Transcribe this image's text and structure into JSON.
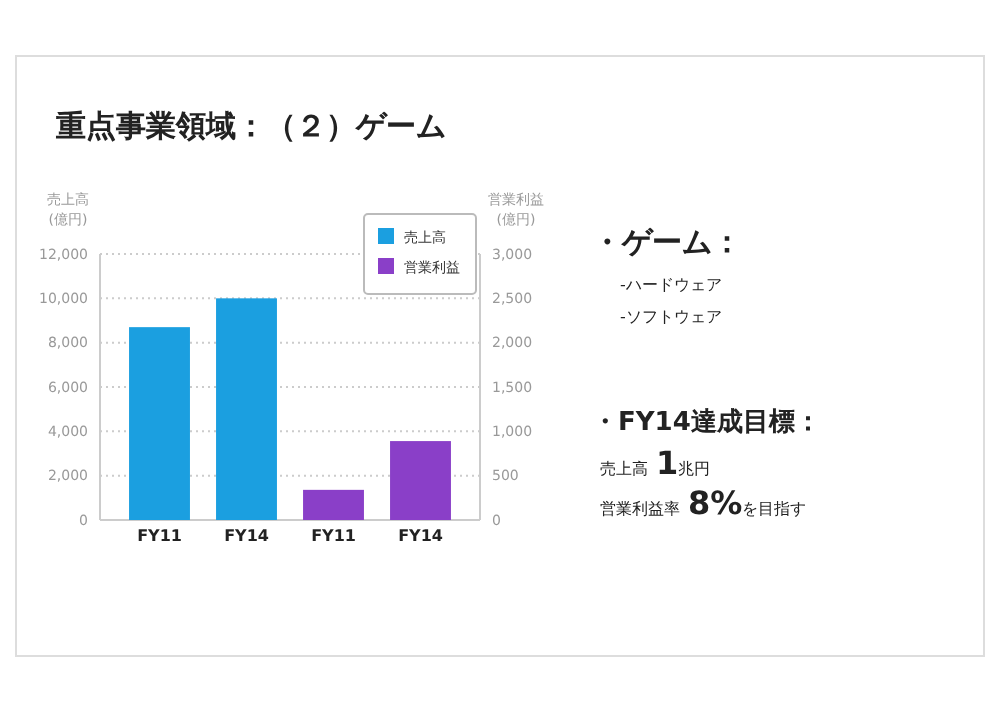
{
  "chart_data": {
    "type": "bar",
    "title": "重点事業領域：（２）ゲーム",
    "ylabel": "売上高\n(億円)",
    "y2label": "営業利益\n(億円)",
    "categories": [
      "FY11",
      "FY14",
      "FY11",
      "FY14"
    ],
    "series": [
      {
        "name": "売上高",
        "color": "#1b9fe0",
        "values": [
          8700,
          10000,
          null,
          null
        ]
      },
      {
        "name": "営業利益",
        "color": "#8a3fc8",
        "values": [
          null,
          null,
          340,
          890
        ],
        "axis": "y2"
      }
    ],
    "ylim": [
      0,
      12000
    ],
    "yticks": [
      {
        "value": 0,
        "label": "0"
      },
      {
        "value": 2000,
        "label": "2,000"
      },
      {
        "value": 4000,
        "label": "4,000"
      },
      {
        "value": 6000,
        "label": "6,000"
      },
      {
        "value": 8000,
        "label": "8,000"
      },
      {
        "value": 10000,
        "label": "10,000"
      },
      {
        "value": 12000,
        "label": "12,000"
      }
    ],
    "y2lim": [
      0,
      3000
    ],
    "y2ticks": [
      {
        "value": 0,
        "label": "0"
      },
      {
        "value": 500,
        "label": "500"
      },
      {
        "value": 1000,
        "label": "1,000"
      },
      {
        "value": 1500,
        "label": "1,500"
      },
      {
        "value": 2000,
        "label": "2,000"
      },
      {
        "value": 2500,
        "label": "2,500"
      },
      {
        "value": 3000,
        "label": "3,000"
      }
    ],
    "grid": "y",
    "legend": "top right",
    "annotations": [
      "・ゲーム：",
      "-ハードウェア",
      "-ソフトウェア",
      "・FY14達成目標：",
      "売上高1兆円",
      "営業利益率8%を目指す"
    ]
  }
}
